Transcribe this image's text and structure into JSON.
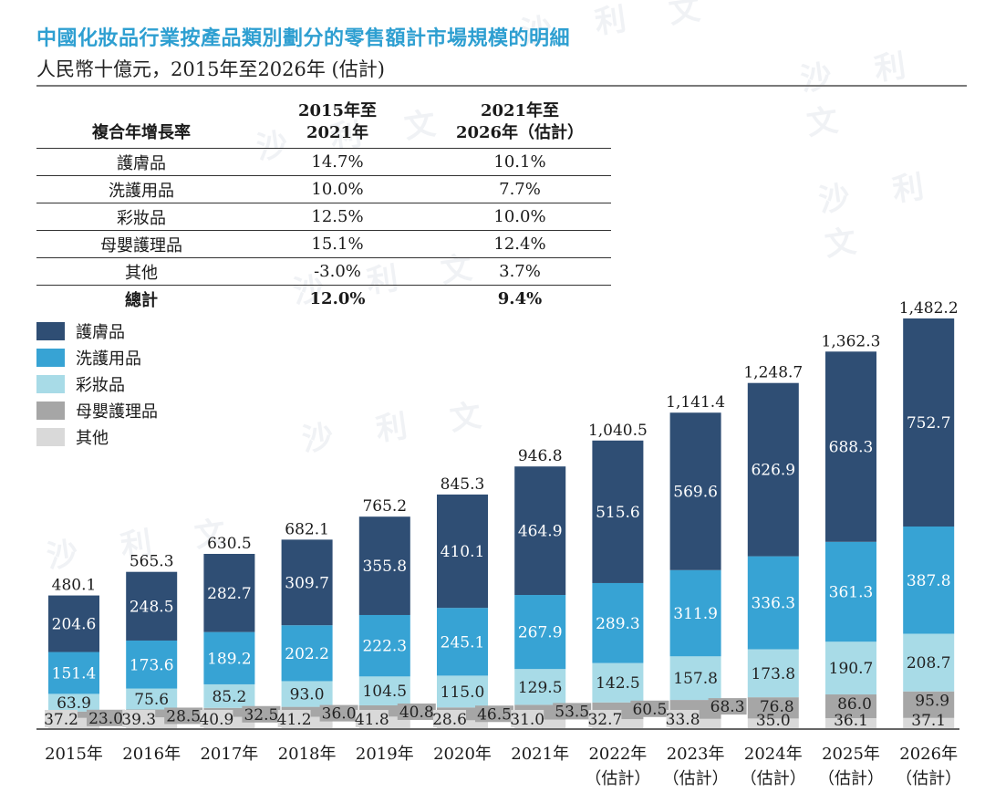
{
  "header": {
    "title": "中國化妝品行業按產品類別劃分的零售額計市場規模的明細",
    "subtitle": "人民幣十億元，2015年至2026年 (估計)"
  },
  "cagr_table": {
    "headers": [
      "複合年增長率",
      "2015年至\n2021年",
      "2021年至\n2026年（估計）"
    ],
    "header_lines": [
      [
        "複合年增長率"
      ],
      [
        "2015年至",
        "2021年"
      ],
      [
        "2021年至",
        "2026年（估計）"
      ]
    ],
    "rows": [
      {
        "label": "護膚品",
        "v1": "14.7%",
        "v2": "10.1%"
      },
      {
        "label": "洗護用品",
        "v1": "10.0%",
        "v2": "7.7%"
      },
      {
        "label": "彩妝品",
        "v1": "12.5%",
        "v2": "10.0%"
      },
      {
        "label": "母嬰護理品",
        "v1": "15.1%",
        "v2": "12.4%"
      },
      {
        "label": "其他",
        "v1": "-3.0%",
        "v2": "3.7%"
      },
      {
        "label": "總計",
        "v1": "12.0%",
        "v2": "9.4%"
      }
    ]
  },
  "watermark": "沙 利 文",
  "chart_data": {
    "type": "bar",
    "stacked": true,
    "title": "中國化妝品行業按產品類別劃分的零售額計市場規模的明細",
    "subtitle": "人民幣十億元，2015年至2026年 (估計)",
    "xlabel": "",
    "ylabel": "人民幣十億元",
    "grid": false,
    "legend_position": "top-left",
    "ylim": [
      0,
      1482.2
    ],
    "categories": [
      "2015年",
      "2016年",
      "2017年",
      "2018年",
      "2019年",
      "2020年",
      "2021年",
      "2022年\n（估計）",
      "2023年\n（估計）",
      "2024年\n（估計）",
      "2025年\n（估計）",
      "2026年\n（估計）"
    ],
    "category_lines": [
      [
        "2015年"
      ],
      [
        "2016年"
      ],
      [
        "2017年"
      ],
      [
        "2018年"
      ],
      [
        "2019年"
      ],
      [
        "2020年"
      ],
      [
        "2021年"
      ],
      [
        "2022年",
        "（估計）"
      ],
      [
        "2023年",
        "（估計）"
      ],
      [
        "2024年",
        "（估計）"
      ],
      [
        "2025年",
        "（估計）"
      ],
      [
        "2026年",
        "（估計）"
      ]
    ],
    "series": [
      {
        "name": "其他",
        "color": "#d9d9d9",
        "values": [
          37.2,
          39.3,
          40.9,
          41.2,
          41.8,
          28.6,
          31.0,
          32.7,
          33.8,
          35.0,
          36.1,
          37.1
        ]
      },
      {
        "name": "母嬰護理品",
        "color": "#a6a6a6",
        "values": [
          23.0,
          28.5,
          32.5,
          36.0,
          40.8,
          46.5,
          53.5,
          60.5,
          68.3,
          76.8,
          86.0,
          95.9
        ]
      },
      {
        "name": "彩妝品",
        "color": "#a8dbe7",
        "values": [
          63.9,
          75.6,
          85.2,
          93.0,
          104.5,
          115.0,
          129.5,
          142.5,
          157.8,
          173.8,
          190.7,
          208.7
        ]
      },
      {
        "name": "洗護用品",
        "color": "#37a3d4",
        "values": [
          151.4,
          173.6,
          189.2,
          202.2,
          222.3,
          245.1,
          267.9,
          289.3,
          311.9,
          336.3,
          361.3,
          387.8
        ]
      },
      {
        "name": "護膚品",
        "color": "#2f4e74",
        "values": [
          204.6,
          248.5,
          282.7,
          309.7,
          355.8,
          410.1,
          464.9,
          515.6,
          569.6,
          626.9,
          688.3,
          752.7
        ]
      }
    ],
    "totals": [
      "480.1",
      "565.3",
      "630.5",
      "682.1",
      "765.2",
      "845.3",
      "946.8",
      "1,040.5",
      "1,141.4",
      "1,248.7",
      "1,362.3",
      "1,482.2"
    ],
    "legend": [
      {
        "name": "護膚品",
        "color": "#2f4e74"
      },
      {
        "name": "洗護用品",
        "color": "#37a3d4"
      },
      {
        "name": "彩妝品",
        "color": "#a8dbe7"
      },
      {
        "name": "母嬰護理品",
        "color": "#a6a6a6"
      },
      {
        "name": "其他",
        "color": "#d9d9d9"
      }
    ]
  }
}
